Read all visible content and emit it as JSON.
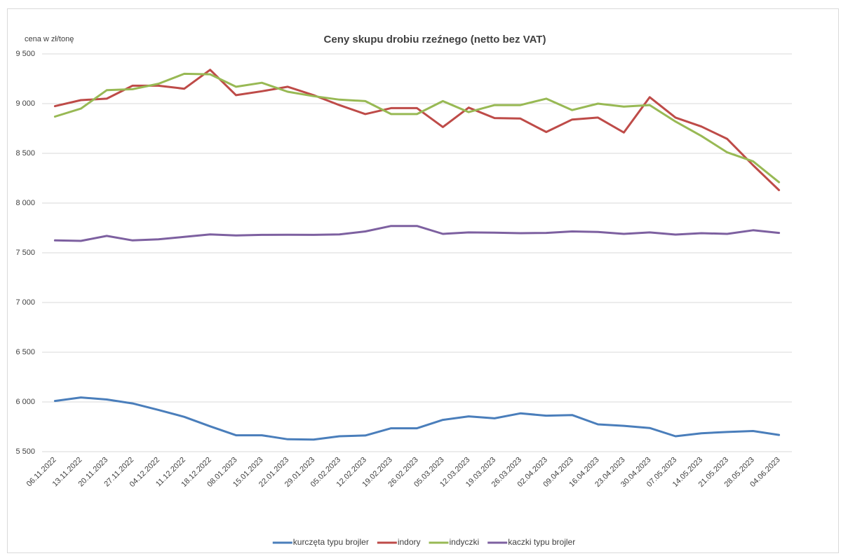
{
  "chart_data": {
    "type": "line",
    "title": "Ceny skupu drobiu rzeźnego (netto bez VAT)",
    "y_label": "cena w zł/tonę",
    "categories": [
      "06.11.2022",
      "13.11.2022",
      "20.11.2023",
      "27.11.2022",
      "04.12.2022",
      "11.12.2022",
      "18.12.2022",
      "08.01.2023",
      "15.01.2023",
      "22.01.2023",
      "29.01.2023",
      "05.02.2023",
      "12.02.2023",
      "19.02.2023",
      "26.02.2023",
      "05.03.2023",
      "12.03.2023",
      "19.03.2023",
      "26.03.2023",
      "02.04.2023",
      "09.04.2023",
      "16.04.2023",
      "23.04.2023",
      "30.04.2023",
      "07.05.2023",
      "14.05.2023",
      "21.05.2023",
      "28.05.2023",
      "04.06.2023"
    ],
    "series": [
      {
        "name": "kurczęta typu brojler",
        "color": "#4a7ebb",
        "values": [
          6010,
          6045,
          6025,
          5985,
          5920,
          5850,
          5755,
          5665,
          5665,
          5625,
          5622,
          5655,
          5663,
          5735,
          5735,
          5820,
          5855,
          5835,
          5885,
          5862,
          5868,
          5775,
          5760,
          5738,
          5655,
          5685,
          5698,
          5708,
          5668
        ]
      },
      {
        "name": "indory",
        "color": "#be4b48",
        "values": [
          8975,
          9035,
          9050,
          9180,
          9180,
          9150,
          9340,
          9085,
          9125,
          9170,
          9085,
          8985,
          8895,
          8955,
          8955,
          8765,
          8960,
          8855,
          8850,
          8715,
          8840,
          8860,
          8710,
          9065,
          8860,
          8770,
          8645,
          8380,
          8130
        ]
      },
      {
        "name": "indyczki",
        "color": "#98b954",
        "values": [
          8870,
          8950,
          9135,
          9145,
          9200,
          9300,
          9295,
          9170,
          9210,
          9120,
          9075,
          9040,
          9025,
          8895,
          8895,
          9025,
          8915,
          8985,
          8985,
          9050,
          8935,
          9000,
          8970,
          8985,
          8820,
          8675,
          8510,
          8420,
          8210
        ]
      },
      {
        "name": "kaczki typu brojler",
        "color": "#7d60a0",
        "values": [
          7625,
          7620,
          7670,
          7625,
          7635,
          7660,
          7685,
          7675,
          7680,
          7682,
          7680,
          7685,
          7715,
          7770,
          7770,
          7690,
          7705,
          7702,
          7697,
          7700,
          7715,
          7710,
          7690,
          7705,
          7683,
          7697,
          7690,
          7727,
          7700
        ]
      }
    ],
    "ylim": [
      5500,
      9500
    ],
    "yticks": [
      {
        "value": 5500,
        "label": "5 500"
      },
      {
        "value": 6000,
        "label": "6 000"
      },
      {
        "value": 6500,
        "label": "6 500"
      },
      {
        "value": 7000,
        "label": "7 000"
      },
      {
        "value": 7500,
        "label": "7 500"
      },
      {
        "value": 8000,
        "label": "8 000"
      },
      {
        "value": 8500,
        "label": "8 500"
      },
      {
        "value": 9000,
        "label": "9 000"
      },
      {
        "value": 9500,
        "label": "9 500"
      }
    ],
    "grid": true,
    "legend": "bottom"
  }
}
